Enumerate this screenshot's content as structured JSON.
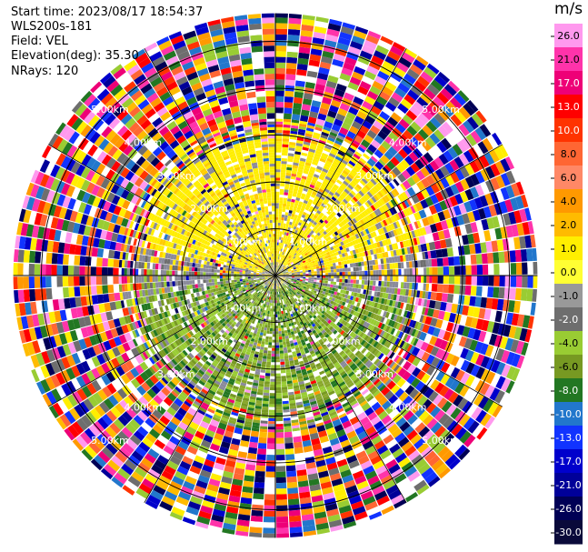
{
  "header": {
    "start_time": "Start time: 2023/08/17 18:54:37",
    "instrument": "WLS200s-181",
    "field": "Field: VEL",
    "elevation": "Elevation(deg): 35.30",
    "nrays": "NRays: 120"
  },
  "colorbar": {
    "unit": "m/s",
    "ticks": [
      "26.0",
      "21.0",
      "17.0",
      "13.0",
      "10.0",
      "8.0",
      "6.0",
      "4.0",
      "2.0",
      "1.0",
      "0.0",
      "-1.0",
      "-2.0",
      "-4.0",
      "-6.0",
      "-8.0",
      "-10.0",
      "-13.0",
      "-17.0",
      "-21.0",
      "-26.0",
      "-30.0"
    ],
    "colors": [
      "#ff99ee",
      "#ff33aa",
      "#ee0077",
      "#ff0000",
      "#ff3300",
      "#ff6633",
      "#ff8866",
      "#ff9900",
      "#ffbb00",
      "#ffee00",
      "#ffff33",
      "#999999",
      "#6e6e6e",
      "#99cc33",
      "#779922",
      "#227722",
      "#2277cc",
      "#1133ff",
      "#0000cc",
      "#000099",
      "#000055",
      "#0a0a3a"
    ]
  },
  "chart_data": {
    "type": "ppi",
    "title": "",
    "field": "VEL",
    "units": "m/s",
    "elevation_deg": 35.3,
    "nrays": 120,
    "range_rings_km": [
      "1.00km",
      "2.00km",
      "3.00km",
      "4.00km",
      "5.00km"
    ],
    "range_rings_values_km": [
      1.0,
      2.0,
      3.0,
      4.0,
      5.0
    ],
    "spoke_azimuths_deg": [
      0,
      30,
      60,
      90,
      120,
      150,
      180,
      210,
      240,
      270,
      300,
      330
    ],
    "max_range_km": 5.6,
    "pattern_description_rings": [
      {
        "range_km": [
          0.0,
          0.3
        ],
        "north_sector": "weak / mixed",
        "south_sector": "weak / mixed"
      },
      {
        "range_km": [
          0.3,
          2.0
        ],
        "north_sector": "0 to +2 (grey / yellow)",
        "south_sector": "-1 to -6 (green)"
      },
      {
        "range_km": [
          2.0,
          3.3
        ],
        "north_sector": "+1 to +2 (yellow)",
        "south_sector": "-2 to -8 (green)"
      },
      {
        "range_km": [
          3.3,
          5.6
        ],
        "north_sector": "noise",
        "south_sector": "noise"
      }
    ]
  }
}
